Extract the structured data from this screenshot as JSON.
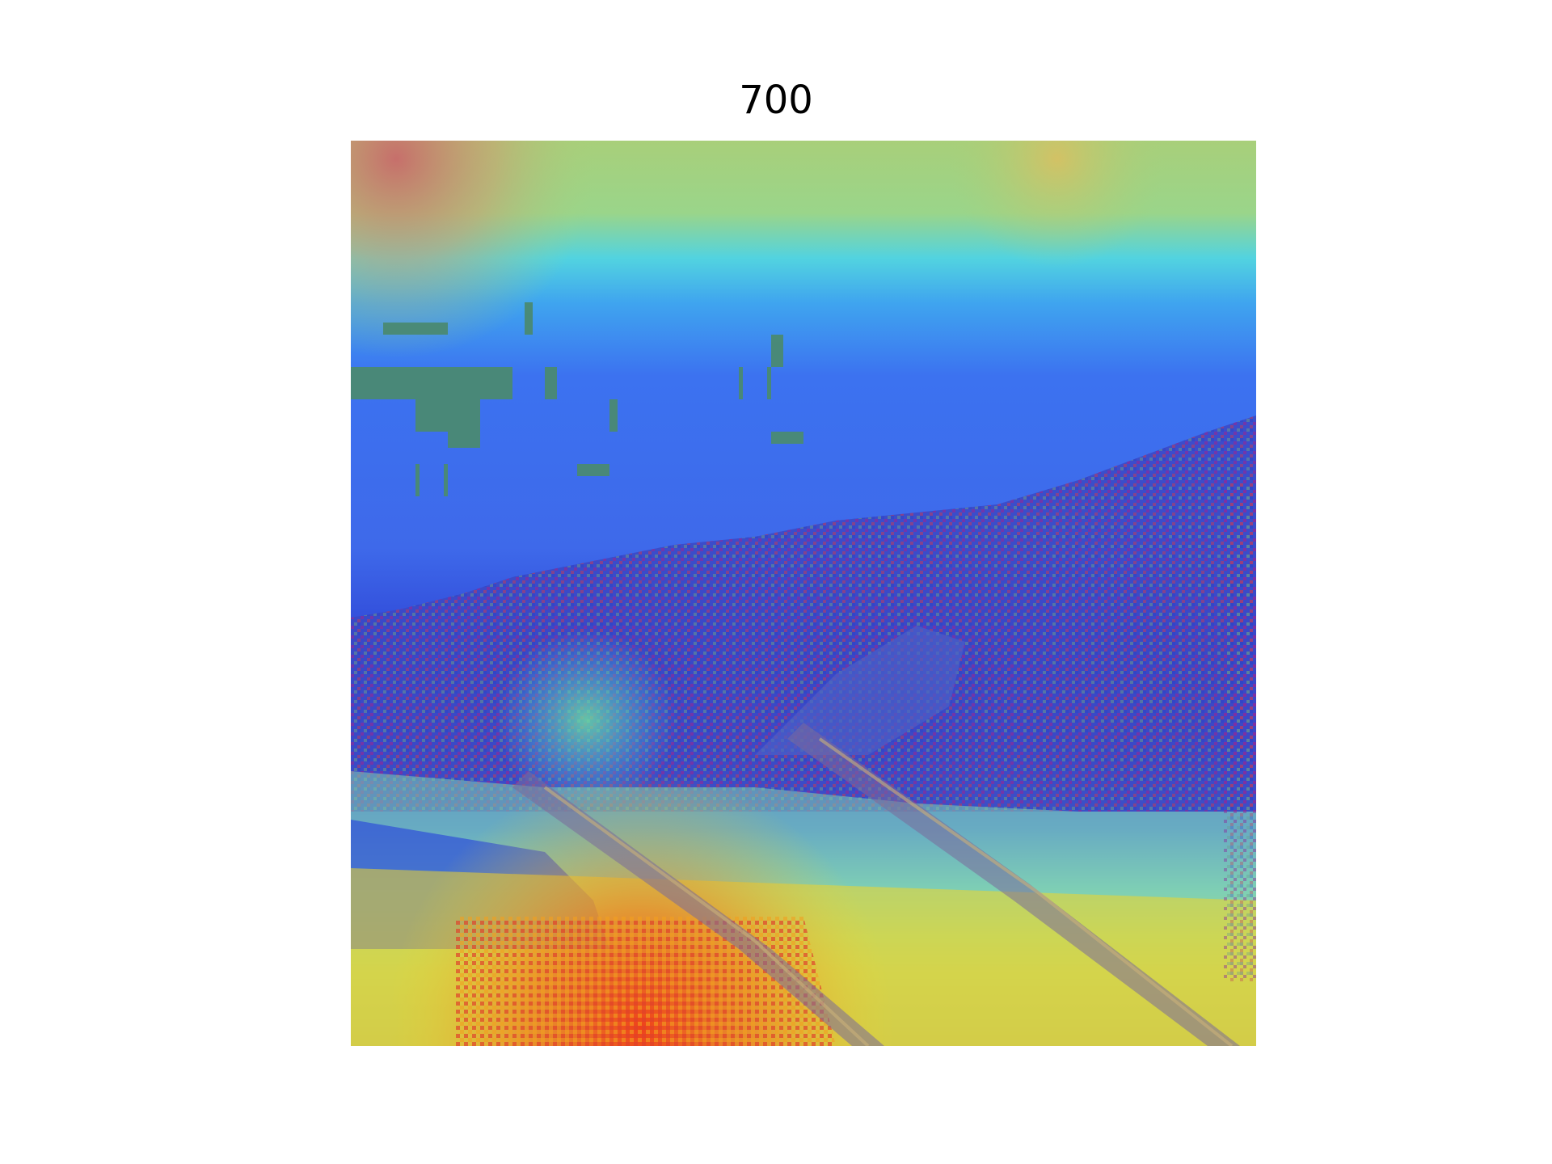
{
  "figure": {
    "title": "700"
  },
  "overlay": {
    "type": "heatmap-overlay",
    "colormap": "jet",
    "colors": {
      "low": "#2f4fe6",
      "mid": "#44d0e8",
      "high": "#f8d420",
      "peak": "#f03a18"
    }
  }
}
